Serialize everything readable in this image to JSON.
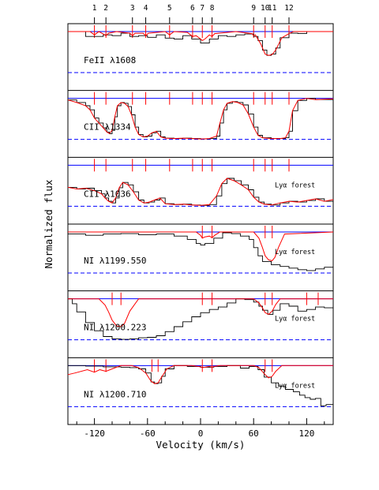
{
  "chart_data": {
    "type": "line",
    "xlabel": "Velocity (km/s)",
    "ylabel": "Normalized flux",
    "xlim": [
      -150,
      150
    ],
    "x_ticks": [
      -120,
      -60,
      0,
      60,
      120
    ],
    "components": [
      {
        "id": "1",
        "v": -120
      },
      {
        "id": "2",
        "v": -107
      },
      {
        "id": "3",
        "v": -77
      },
      {
        "id": "4",
        "v": -62
      },
      {
        "id": "5",
        "v": -35
      },
      {
        "id": "6",
        "v": -9
      },
      {
        "id": "7",
        "v": 2
      },
      {
        "id": "8",
        "v": 13
      },
      {
        "id": "9",
        "v": 60
      },
      {
        "id": "10",
        "v": 73
      },
      {
        "id": "11",
        "v": 81
      },
      {
        "id": "12",
        "v": 100
      }
    ],
    "panels": [
      {
        "label": "FeII λ1608",
        "forest_label": "",
        "ticks": [
          -120,
          -107,
          -77,
          -62,
          -35,
          -9,
          2,
          13,
          60,
          73,
          81,
          100
        ],
        "data_x": [
          -150,
          -130,
          -110,
          -100,
          -90,
          -80,
          -70,
          -60,
          -50,
          -40,
          -30,
          -20,
          -10,
          0,
          10,
          20,
          30,
          40,
          50,
          60,
          65,
          70,
          75,
          80,
          85,
          90,
          100,
          110,
          120,
          130,
          150
        ],
        "data_y": [
          1.0,
          0.88,
          0.92,
          0.9,
          0.96,
          0.88,
          0.9,
          0.86,
          0.92,
          0.84,
          0.82,
          0.9,
          0.82,
          0.72,
          0.82,
          0.9,
          0.88,
          0.92,
          0.94,
          0.88,
          0.78,
          0.55,
          0.42,
          0.45,
          0.6,
          0.85,
          0.96,
          0.95,
          1.0,
          1.0,
          1.0
        ],
        "model_x": [
          -150,
          -125,
          -120,
          -115,
          -110,
          -107,
          -104,
          -95,
          -80,
          -77,
          -74,
          -65,
          -62,
          -59,
          -40,
          -35,
          -30,
          -15,
          -9,
          -5,
          0,
          2,
          5,
          10,
          13,
          16,
          40,
          58,
          60,
          62,
          68,
          73,
          77,
          81,
          85,
          92,
          100,
          105,
          150
        ],
        "model_y": [
          1.0,
          1.0,
          0.92,
          1.0,
          0.94,
          0.9,
          0.96,
          1.0,
          0.96,
          0.9,
          0.96,
          0.96,
          0.9,
          0.96,
          1.0,
          0.92,
          1.0,
          0.98,
          0.88,
          0.9,
          0.82,
          0.78,
          0.82,
          0.92,
          0.88,
          0.95,
          1.0,
          0.95,
          0.9,
          0.92,
          0.7,
          0.45,
          0.42,
          0.44,
          0.55,
          0.85,
          0.95,
          1.0,
          1.0
        ]
      },
      {
        "label": "CII λ1334",
        "forest_label": "",
        "ticks": [
          -120,
          -107,
          -77,
          -62,
          -35,
          -9,
          2,
          13,
          60,
          73,
          81,
          100
        ],
        "data_x": [
          -150,
          -140,
          -130,
          -125,
          -120,
          -115,
          -110,
          -106,
          -103,
          -100,
          -97,
          -94,
          -90,
          -86,
          -82,
          -78,
          -74,
          -70,
          -65,
          -60,
          -55,
          -50,
          -45,
          -40,
          -30,
          -20,
          -10,
          0,
          10,
          18,
          22,
          26,
          30,
          36,
          42,
          48,
          54,
          60,
          65,
          70,
          80,
          90,
          96,
          100,
          104,
          110,
          120,
          130,
          150
        ],
        "data_y": [
          0.96,
          0.9,
          0.82,
          0.72,
          0.52,
          0.4,
          0.28,
          0.18,
          0.14,
          0.22,
          0.55,
          0.82,
          0.9,
          0.88,
          0.8,
          0.6,
          0.3,
          0.12,
          0.06,
          0.08,
          0.16,
          0.2,
          0.06,
          0.03,
          0.02,
          0.03,
          0.02,
          0.01,
          0.02,
          0.08,
          0.4,
          0.72,
          0.88,
          0.92,
          0.9,
          0.84,
          0.62,
          0.3,
          0.1,
          0.04,
          0.02,
          0.02,
          0.04,
          0.2,
          0.7,
          0.95,
          1.0,
          0.97,
          0.99
        ]
      },
      {
        "label": "CII λ1036",
        "forest_label": "Lyα forest",
        "ticks": [
          -120,
          -107,
          -77,
          -62,
          -35,
          -9,
          2,
          13,
          60,
          73,
          81,
          100
        ],
        "data_x": [
          -150,
          -140,
          -130,
          -120,
          -112,
          -108,
          -104,
          -100,
          -96,
          -92,
          -88,
          -82,
          -76,
          -70,
          -64,
          -58,
          -52,
          -46,
          -40,
          -30,
          -20,
          -10,
          0,
          10,
          18,
          24,
          30,
          38,
          46,
          54,
          60,
          66,
          72,
          80,
          90,
          100,
          110,
          120,
          130,
          140,
          150
        ],
        "data_y": [
          0.46,
          0.42,
          0.44,
          0.38,
          0.3,
          0.2,
          0.12,
          0.08,
          0.2,
          0.45,
          0.58,
          0.52,
          0.35,
          0.15,
          0.08,
          0.1,
          0.15,
          0.2,
          0.06,
          0.04,
          0.05,
          0.03,
          0.02,
          0.04,
          0.25,
          0.55,
          0.68,
          0.62,
          0.52,
          0.4,
          0.22,
          0.1,
          0.05,
          0.03,
          0.08,
          0.12,
          0.1,
          0.14,
          0.18,
          0.12,
          0.16
        ]
      },
      {
        "label": "NI λ1199.550",
        "forest_label": "Lyα forest",
        "ticks": [
          2,
          13,
          73,
          81
        ],
        "data_x": [
          -150,
          -130,
          -110,
          -90,
          -70,
          -50,
          -30,
          -15,
          -5,
          0,
          5,
          15,
          25,
          35,
          45,
          55,
          60,
          65,
          70,
          80,
          90,
          100,
          110,
          120,
          130,
          140,
          150
        ],
        "data_y": [
          0.95,
          0.92,
          0.95,
          0.96,
          0.93,
          0.95,
          0.9,
          0.82,
          0.72,
          0.68,
          0.72,
          0.85,
          0.98,
          0.96,
          0.9,
          0.82,
          0.62,
          0.42,
          0.28,
          0.2,
          0.16,
          0.12,
          0.08,
          0.06,
          0.1,
          0.14,
          0.18
        ],
        "model_x": [
          -150,
          -5,
          0,
          2,
          5,
          10,
          13,
          16,
          22,
          60,
          66,
          70,
          73,
          77,
          81,
          84,
          88,
          95,
          150
        ],
        "model_y": [
          1.0,
          1.0,
          0.92,
          0.85,
          0.88,
          0.9,
          0.86,
          0.92,
          1.0,
          1.0,
          0.85,
          0.62,
          0.42,
          0.32,
          0.3,
          0.38,
          0.62,
          0.95,
          1.0
        ]
      },
      {
        "label": "NI λ1200.223",
        "forest_label": "Lyα forest",
        "ticks": [
          -100,
          -90,
          2,
          13,
          73,
          81,
          120,
          133
        ],
        "data_x": [
          -150,
          -145,
          -140,
          -130,
          -120,
          -110,
          -100,
          -90,
          -80,
          -70,
          -60,
          -50,
          -40,
          -30,
          -20,
          -10,
          0,
          10,
          20,
          30,
          40,
          50,
          60,
          66,
          70,
          76,
          82,
          90,
          100,
          110,
          120,
          130,
          140,
          150
        ],
        "data_y": [
          1.0,
          0.88,
          0.68,
          0.42,
          0.22,
          0.08,
          0.02,
          0.01,
          0.02,
          0.05,
          0.06,
          0.1,
          0.2,
          0.32,
          0.44,
          0.56,
          0.66,
          0.74,
          0.8,
          0.9,
          1.0,
          0.98,
          0.92,
          0.82,
          0.72,
          0.62,
          0.72,
          0.88,
          0.82,
          0.7,
          0.74,
          0.8,
          0.78,
          0.8
        ],
        "model_x": [
          -150,
          -115,
          -108,
          -104,
          -100,
          -95,
          -90,
          -86,
          -80,
          -70,
          60,
          66,
          70,
          73,
          77,
          81,
          85,
          90,
          150
        ],
        "model_y": [
          1.0,
          1.0,
          0.85,
          0.68,
          0.48,
          0.34,
          0.32,
          0.4,
          0.7,
          1.0,
          1.0,
          0.9,
          0.78,
          0.66,
          0.62,
          0.7,
          0.86,
          1.0,
          1.0
        ]
      },
      {
        "label": "NI λ1200.710",
        "forest_label": "Lyα forest",
        "ticks": [
          -120,
          -107,
          -55,
          -48,
          2,
          13,
          73,
          81
        ],
        "data_x": [
          -150,
          -130,
          -110,
          -90,
          -80,
          -70,
          -62,
          -56,
          -52,
          -48,
          -44,
          -40,
          -30,
          -15,
          0,
          15,
          30,
          45,
          55,
          65,
          72,
          80,
          88,
          96,
          105,
          112,
          118,
          124,
          130,
          136,
          142,
          150
        ],
        "data_y": [
          1.0,
          0.99,
          0.97,
          0.96,
          0.95,
          0.92,
          0.82,
          0.6,
          0.56,
          0.58,
          0.74,
          0.92,
          1.0,
          0.98,
          0.96,
          0.98,
          1.0,
          0.94,
          0.98,
          0.9,
          0.72,
          0.58,
          0.5,
          0.42,
          0.36,
          0.28,
          0.22,
          0.18,
          0.2,
          0.02,
          0.05,
          0.08
        ],
        "model_x": [
          -150,
          -142,
          -128,
          -120,
          -114,
          -107,
          -100,
          -90,
          -78,
          -70,
          -62,
          -56,
          -52,
          -48,
          -44,
          -38,
          -30,
          -10,
          0,
          2,
          5,
          10,
          13,
          16,
          22,
          60,
          66,
          73,
          77,
          81,
          85,
          92,
          150
        ],
        "model_y": [
          0.78,
          0.82,
          0.9,
          0.84,
          0.9,
          0.86,
          0.92,
          1.0,
          1.0,
          0.95,
          0.82,
          0.62,
          0.56,
          0.58,
          0.72,
          0.92,
          1.0,
          1.0,
          0.97,
          0.95,
          0.96,
          0.98,
          0.96,
          0.98,
          1.0,
          1.0,
          0.95,
          0.78,
          0.7,
          0.74,
          0.86,
          1.0,
          1.0
        ]
      }
    ]
  },
  "colors": {
    "data": "#000000",
    "model": "#ff0000",
    "continuum": "#0000ff",
    "zero": "#0000ff",
    "ticks": "#ff0000"
  }
}
